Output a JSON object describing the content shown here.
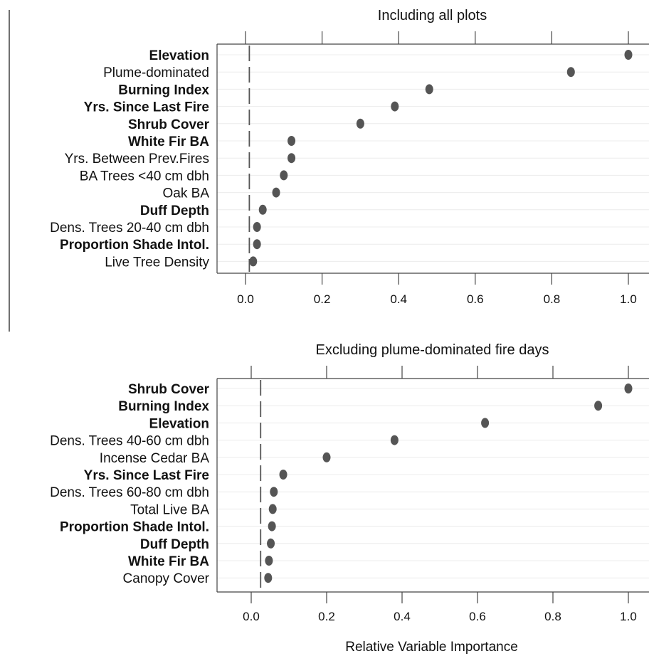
{
  "chart_data": [
    {
      "type": "scatter",
      "title": "Including all plots",
      "xlim": [
        -0.07,
        1.07
      ],
      "xticks": [
        "0.0",
        "0.2",
        "0.4",
        "0.6",
        "0.8",
        "1.0"
      ],
      "xtick_values": [
        0.0,
        0.2,
        0.4,
        0.6,
        0.8,
        1.0
      ],
      "reference_line": 0.01,
      "grid": "horizontal",
      "marker_color": "#555555",
      "points": [
        {
          "label": "Elevation",
          "bold": true,
          "value": 1.0
        },
        {
          "label": "Plume-dominated",
          "bold": false,
          "value": 0.85
        },
        {
          "label": "Burning Index",
          "bold": true,
          "value": 0.48
        },
        {
          "label": "Yrs. Since Last Fire",
          "bold": true,
          "value": 0.39
        },
        {
          "label": "Shrub Cover",
          "bold": true,
          "value": 0.3
        },
        {
          "label": "White Fir BA",
          "bold": true,
          "value": 0.12
        },
        {
          "label": "Yrs. Between Prev.Fires",
          "bold": false,
          "value": 0.12
        },
        {
          "label": "BA Trees <40 cm dbh",
          "bold": false,
          "value": 0.1
        },
        {
          "label": "Oak BA",
          "bold": false,
          "value": 0.08
        },
        {
          "label": "Duff Depth",
          "bold": true,
          "value": 0.045
        },
        {
          "label": "Dens. Trees 20-40 cm dbh",
          "bold": false,
          "value": 0.03
        },
        {
          "label": "Proportion Shade Intol.",
          "bold": true,
          "value": 0.03
        },
        {
          "label": "Live Tree Density",
          "bold": false,
          "value": 0.02
        }
      ]
    },
    {
      "type": "scatter",
      "title": "Excluding plume-dominated fire days",
      "xlim": [
        -0.07,
        1.07
      ],
      "xticks": [
        "0.0",
        "0.2",
        "0.4",
        "0.6",
        "0.8",
        "1.0"
      ],
      "xtick_values": [
        0.0,
        0.2,
        0.4,
        0.6,
        0.8,
        1.0
      ],
      "xlabel": "Relative Variable Importance",
      "reference_line": 0.025,
      "grid": "horizontal",
      "marker_color": "#555555",
      "points": [
        {
          "label": "Shrub Cover",
          "bold": true,
          "value": 1.0
        },
        {
          "label": "Burning Index",
          "bold": true,
          "value": 0.92
        },
        {
          "label": "Elevation",
          "bold": true,
          "value": 0.62
        },
        {
          "label": "Dens. Trees 40-60 cm dbh",
          "bold": false,
          "value": 0.38
        },
        {
          "label": "Incense Cedar BA",
          "bold": false,
          "value": 0.2
        },
        {
          "label": "Yrs. Since Last Fire",
          "bold": true,
          "value": 0.085
        },
        {
          "label": "Dens. Trees 60-80 cm dbh",
          "bold": false,
          "value": 0.06
        },
        {
          "label": "Total Live BA",
          "bold": false,
          "value": 0.057
        },
        {
          "label": "Proportion Shade Intol.",
          "bold": true,
          "value": 0.055
        },
        {
          "label": "Duff Depth",
          "bold": true,
          "value": 0.052
        },
        {
          "label": "White Fir BA",
          "bold": true,
          "value": 0.047
        },
        {
          "label": "Canopy Cover",
          "bold": false,
          "value": 0.045
        }
      ]
    }
  ]
}
